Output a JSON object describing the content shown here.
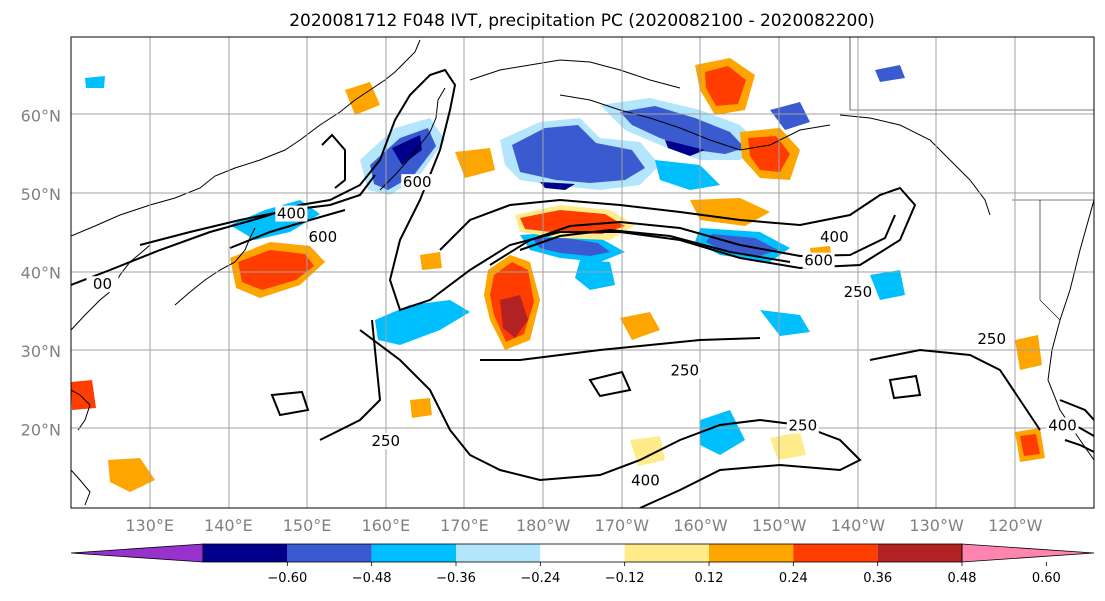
{
  "figure": {
    "title": "2020081712 F048 IVT, precipitation PC (2020082100 - 2020082200)"
  },
  "map": {
    "lat_ticks": [
      {
        "value": 20,
        "label": "20°N"
      },
      {
        "value": 30,
        "label": "30°N"
      },
      {
        "value": 40,
        "label": "40°N"
      },
      {
        "value": 50,
        "label": "50°N"
      },
      {
        "value": 60,
        "label": "60°N"
      }
    ],
    "lon_ticks": [
      {
        "value": 130,
        "label": "130°E"
      },
      {
        "value": 140,
        "label": "140°E"
      },
      {
        "value": 150,
        "label": "150°E"
      },
      {
        "value": 160,
        "label": "160°E"
      },
      {
        "value": 170,
        "label": "170°E"
      },
      {
        "value": 180,
        "label": "180°W"
      },
      {
        "value": 190,
        "label": "170°W"
      },
      {
        "value": 200,
        "label": "160°W"
      },
      {
        "value": 210,
        "label": "150°W"
      },
      {
        "value": 220,
        "label": "140°W"
      },
      {
        "value": 230,
        "label": "130°W"
      },
      {
        "value": 240,
        "label": "120°W"
      }
    ],
    "contour_labels": [
      {
        "text": "600",
        "lon": 164,
        "lat": 51
      },
      {
        "text": "400",
        "lon": 148,
        "lat": 47
      },
      {
        "text": "600",
        "lon": 152,
        "lat": 44
      },
      {
        "text": "00",
        "lon": 124,
        "lat": 38
      },
      {
        "text": "400",
        "lon": 217,
        "lat": 44
      },
      {
        "text": "600",
        "lon": 215,
        "lat": 41
      },
      {
        "text": "250",
        "lon": 220,
        "lat": 37
      },
      {
        "text": "250",
        "lon": 237,
        "lat": 31
      },
      {
        "text": "250",
        "lon": 198,
        "lat": 27
      },
      {
        "text": "250",
        "lon": 213,
        "lat": 20
      },
      {
        "text": "250",
        "lon": 160,
        "lat": 18
      },
      {
        "text": "400",
        "lon": 193,
        "lat": 13
      },
      {
        "text": "400",
        "lon": 246,
        "lat": 20
      }
    ]
  },
  "colorbar": {
    "ticks": [
      "−0.60",
      "−0.48",
      "−0.36",
      "−0.24",
      "−0.12",
      "0.12",
      "0.24",
      "0.36",
      "0.48",
      "0.60"
    ],
    "colors": [
      "#9932cc",
      "#00008b",
      "#3a5bd0",
      "#00bfff",
      "#b3e5fc",
      "#ffffff",
      "#ffeb8a",
      "#ffa500",
      "#ff3d00",
      "#b22222",
      "#ff85b0"
    ]
  }
}
